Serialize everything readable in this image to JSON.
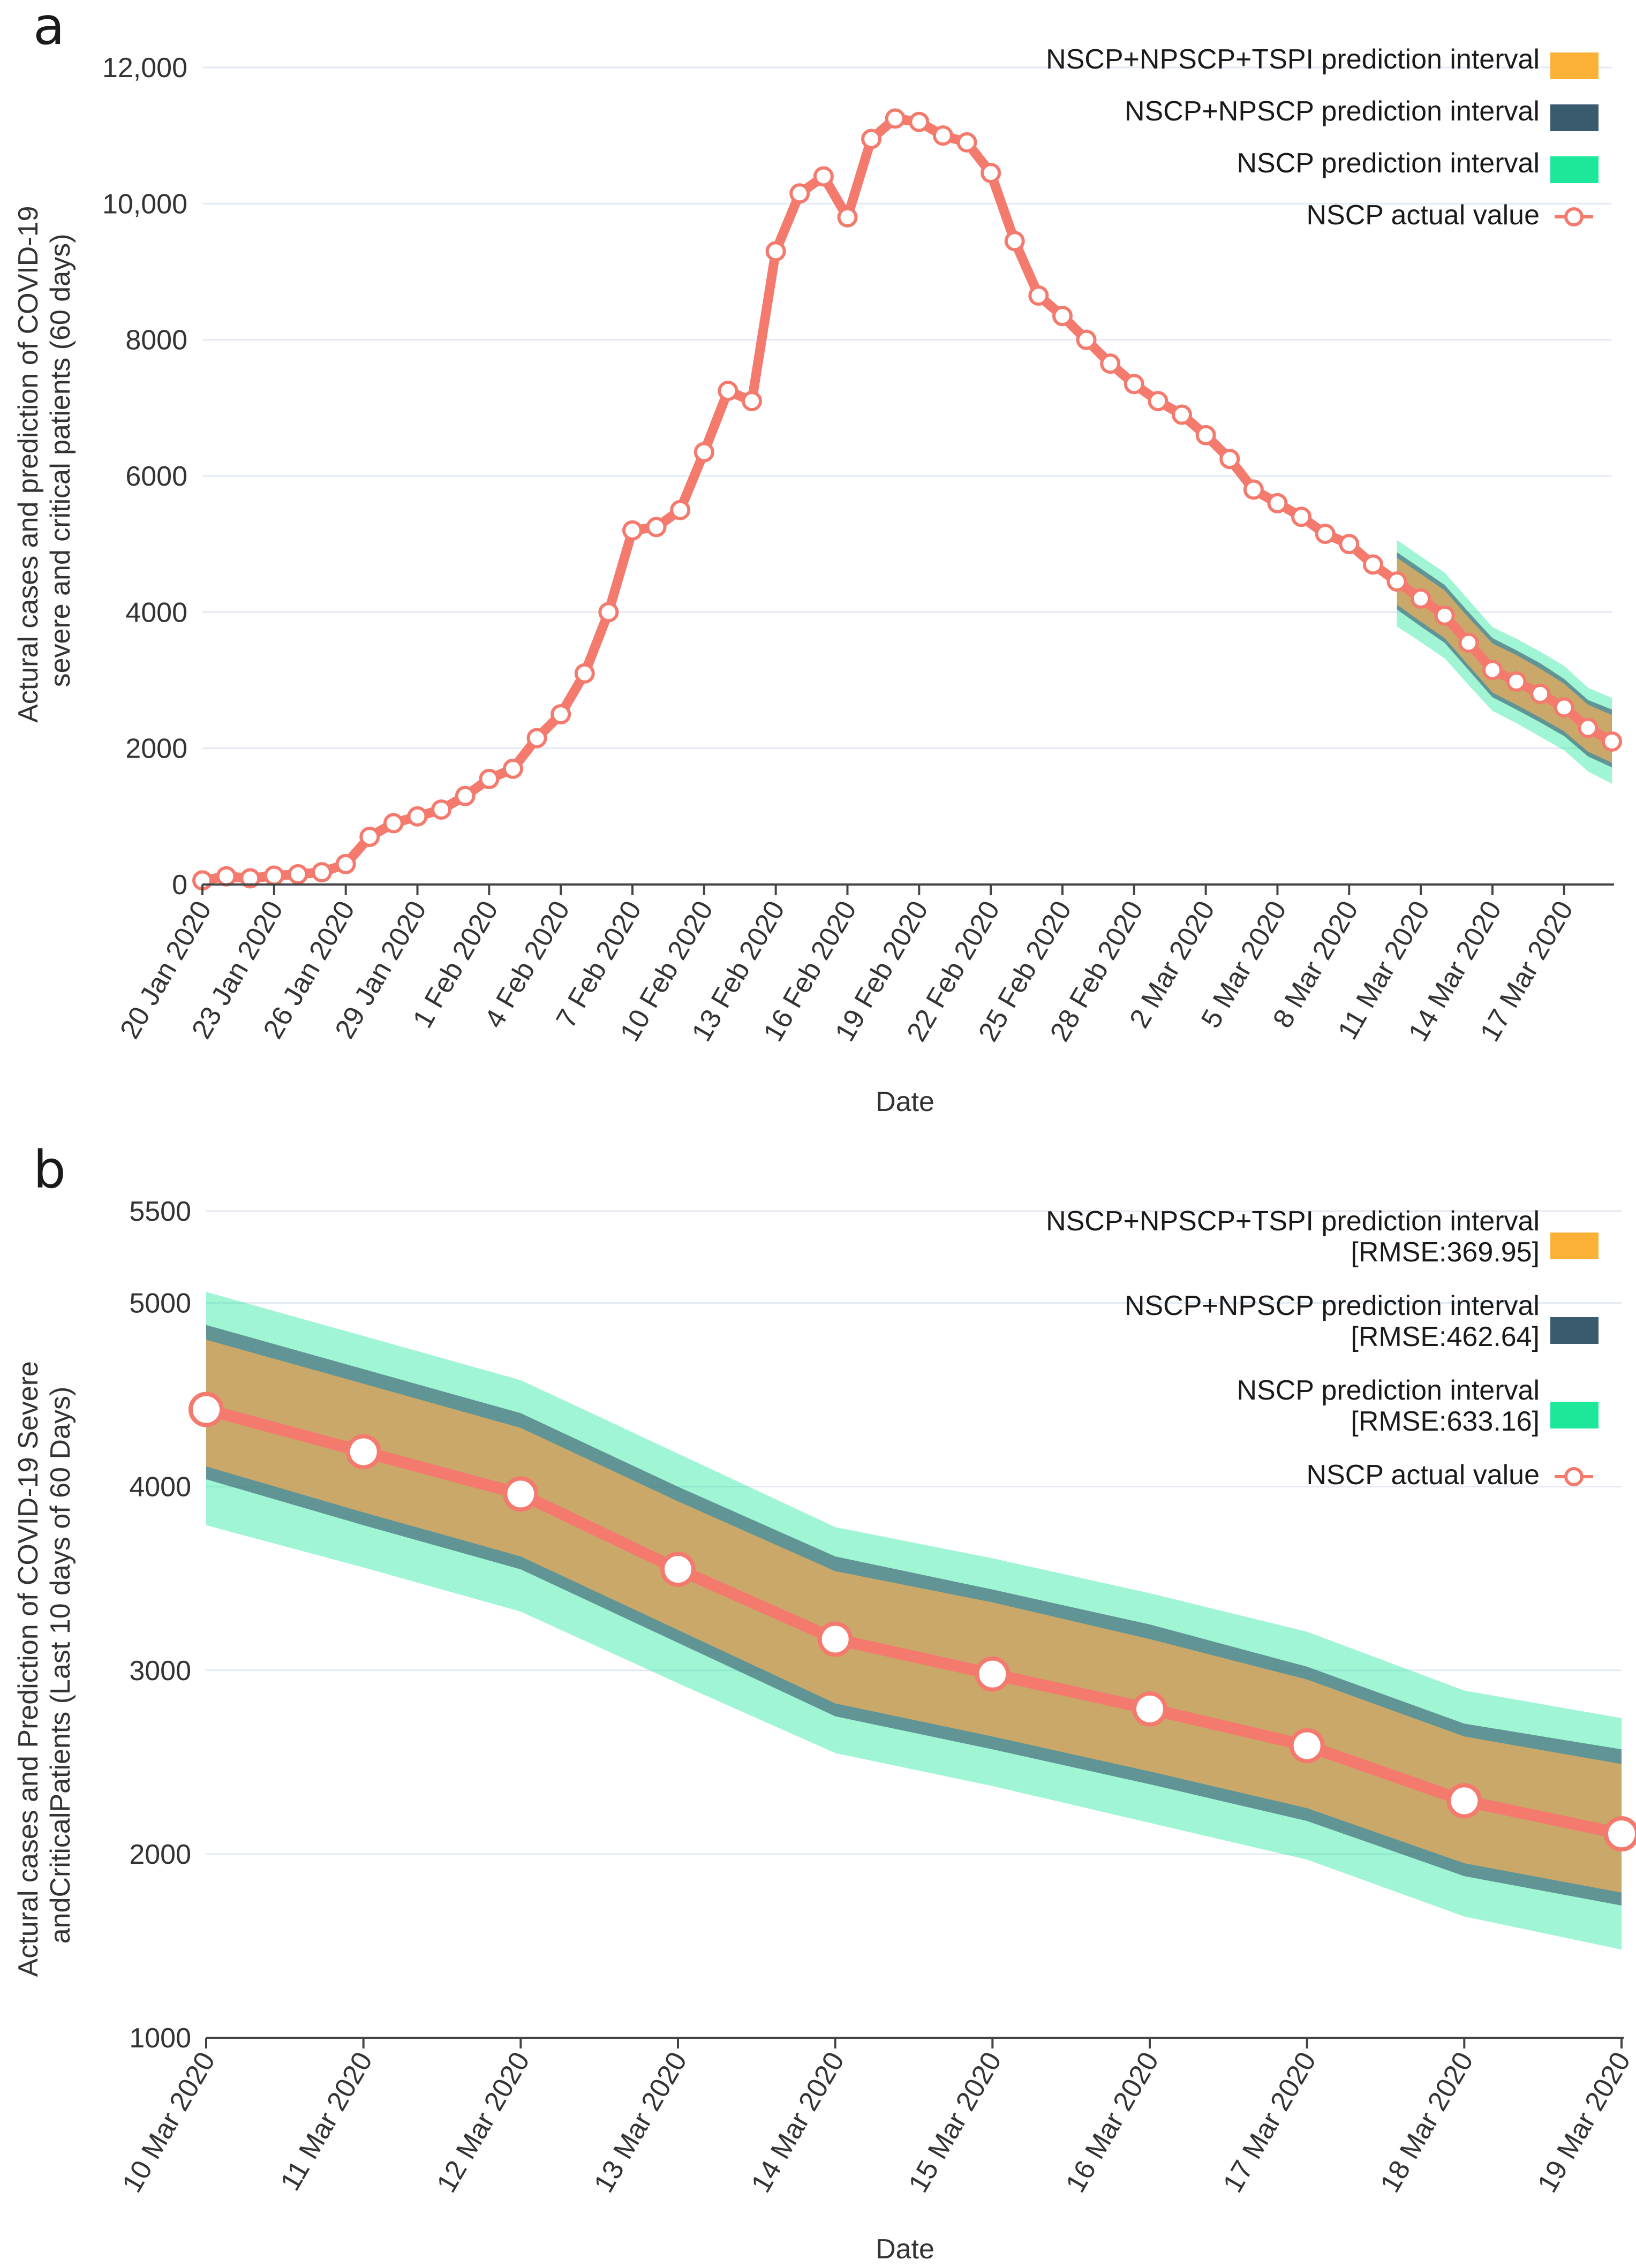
{
  "colors": {
    "actual": "#f47a6e",
    "nscp": "#1de89a",
    "npscp": "#3a5a6e",
    "tspi": "#fbb037",
    "grid": "#e4eaf3",
    "axis": "#444444"
  },
  "legend_labels": {
    "tspi": "NSCP+NPSCP+TSPI prediction interval",
    "npscp": "NSCP+NPSCP prediction interval",
    "nscp": "NSCP prediction interval",
    "actual": "NSCP actual value"
  },
  "chart_data": [
    {
      "panel": "a",
      "type": "line",
      "title": "",
      "xlabel": "Date",
      "ylabel_lines": [
        "Actural cases and prediction of COVID-19",
        "severe and critical patients (60 days)"
      ],
      "ylim": [
        0,
        12000
      ],
      "yticks": [
        0,
        2000,
        4000,
        6000,
        8000,
        10000,
        12000
      ],
      "ytick_labels": [
        "0",
        "2000",
        "4000",
        "6000",
        "8000",
        "10,000",
        "12,000"
      ],
      "x_tick_labels": [
        "20 Jan 2020",
        "23 Jan 2020",
        "26 Jan 2020",
        "29 Jan 2020",
        "1 Feb 2020",
        "4 Feb 2020",
        "7 Feb 2020",
        "10 Feb 2020",
        "13 Feb 2020",
        "16 Feb 2020",
        "19 Feb 2020",
        "22 Feb 2020",
        "25 Feb 2020",
        "28 Feb 2020",
        "2 Mar 2020",
        "5 Mar 2020",
        "8 Mar 2020",
        "11 Mar 2020",
        "14 Mar 2020",
        "17 Mar 2020"
      ],
      "x_tick_every": 3,
      "actual": [
        60,
        120,
        90,
        130,
        150,
        180,
        300,
        700,
        900,
        1000,
        1100,
        1300,
        1550,
        1700,
        2150,
        2500,
        3100,
        4000,
        5200,
        5250,
        5500,
        6350,
        7250,
        7100,
        9300,
        10150,
        10400,
        9800,
        10950,
        11250,
        11200,
        11000,
        10900,
        10450,
        9450,
        8650,
        8350,
        8000,
        7650,
        7350,
        7100,
        6900,
        6600,
        6250,
        5800,
        5600,
        5400,
        5150,
        5000,
        4700,
        4450,
        4200,
        3950,
        3550,
        3150,
        2980,
        2800,
        2600,
        2300,
        2100
      ],
      "interval_start_index": 50,
      "legend_rmse": [
        "",
        "",
        ""
      ]
    },
    {
      "panel": "b",
      "type": "line",
      "title": "",
      "xlabel": "Date",
      "ylabel_lines": [
        "Actural cases and Prediction of COVID-19 Severe",
        "andCriticalPatients (Last 10 days of 60 Days)"
      ],
      "ylim": [
        1000,
        5500
      ],
      "yticks": [
        1000,
        2000,
        3000,
        4000,
        5000,
        5500
      ],
      "ytick_labels": [
        "1000",
        "2000",
        "3000",
        "4000",
        "5000",
        "5500"
      ],
      "x_tick_labels": [
        "10 Mar 2020",
        "11 Mar 2020",
        "12 Mar 2020",
        "13 Mar 2020",
        "14 Mar 2020",
        "15 Mar 2020",
        "16 Mar 2020",
        "17 Mar 2020",
        "18 Mar 2020",
        "19 Mar 2020"
      ],
      "x_tick_every": 1,
      "actual": [
        4420,
        4190,
        3960,
        3550,
        3170,
        2980,
        2790,
        2590,
        2290,
        2110
      ],
      "interval_start_index": 0,
      "legend_rmse": [
        "[RMSE:369.95]",
        "[RMSE:462.64]",
        "[RMSE:633.16]"
      ]
    }
  ],
  "intervals": {
    "x_labels": [
      "10 Mar 2020",
      "11 Mar 2020",
      "12 Mar 2020",
      "13 Mar 2020",
      "14 Mar 2020",
      "15 Mar 2020",
      "16 Mar 2020",
      "17 Mar 2020",
      "18 Mar 2020",
      "19 Mar 2020"
    ],
    "nscp_upper": [
      5060,
      4820,
      4580,
      4180,
      3780,
      3610,
      3420,
      3210,
      2890,
      2740
    ],
    "nscp_lower": [
      3790,
      3560,
      3320,
      2930,
      2550,
      2370,
      2170,
      1970,
      1660,
      1480
    ],
    "npscp_upper": [
      4880,
      4640,
      4400,
      4000,
      3620,
      3440,
      3250,
      3020,
      2710,
      2570
    ],
    "npscp_lower": [
      4040,
      3790,
      3550,
      3150,
      2750,
      2570,
      2380,
      2180,
      1880,
      1720
    ],
    "tspi_upper": [
      4800,
      4560,
      4320,
      3920,
      3540,
      3370,
      3170,
      2950,
      2640,
      2490
    ],
    "tspi_lower": [
      4110,
      3860,
      3620,
      3220,
      2820,
      2640,
      2450,
      2250,
      1950,
      1790
    ]
  }
}
